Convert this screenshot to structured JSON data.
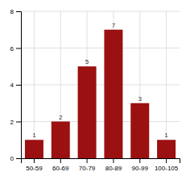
{
  "chart_data": {
    "type": "bar",
    "categories": [
      "50-59",
      "60-69",
      "70-79",
      "80-89",
      "90-99",
      "100-105"
    ],
    "values": [
      1,
      2,
      5,
      7,
      3,
      1
    ],
    "color": "#9B1010",
    "ylim": [
      0,
      8
    ],
    "yticks": [
      0,
      2,
      4,
      6,
      8
    ],
    "grid": true,
    "data_labels": true
  }
}
